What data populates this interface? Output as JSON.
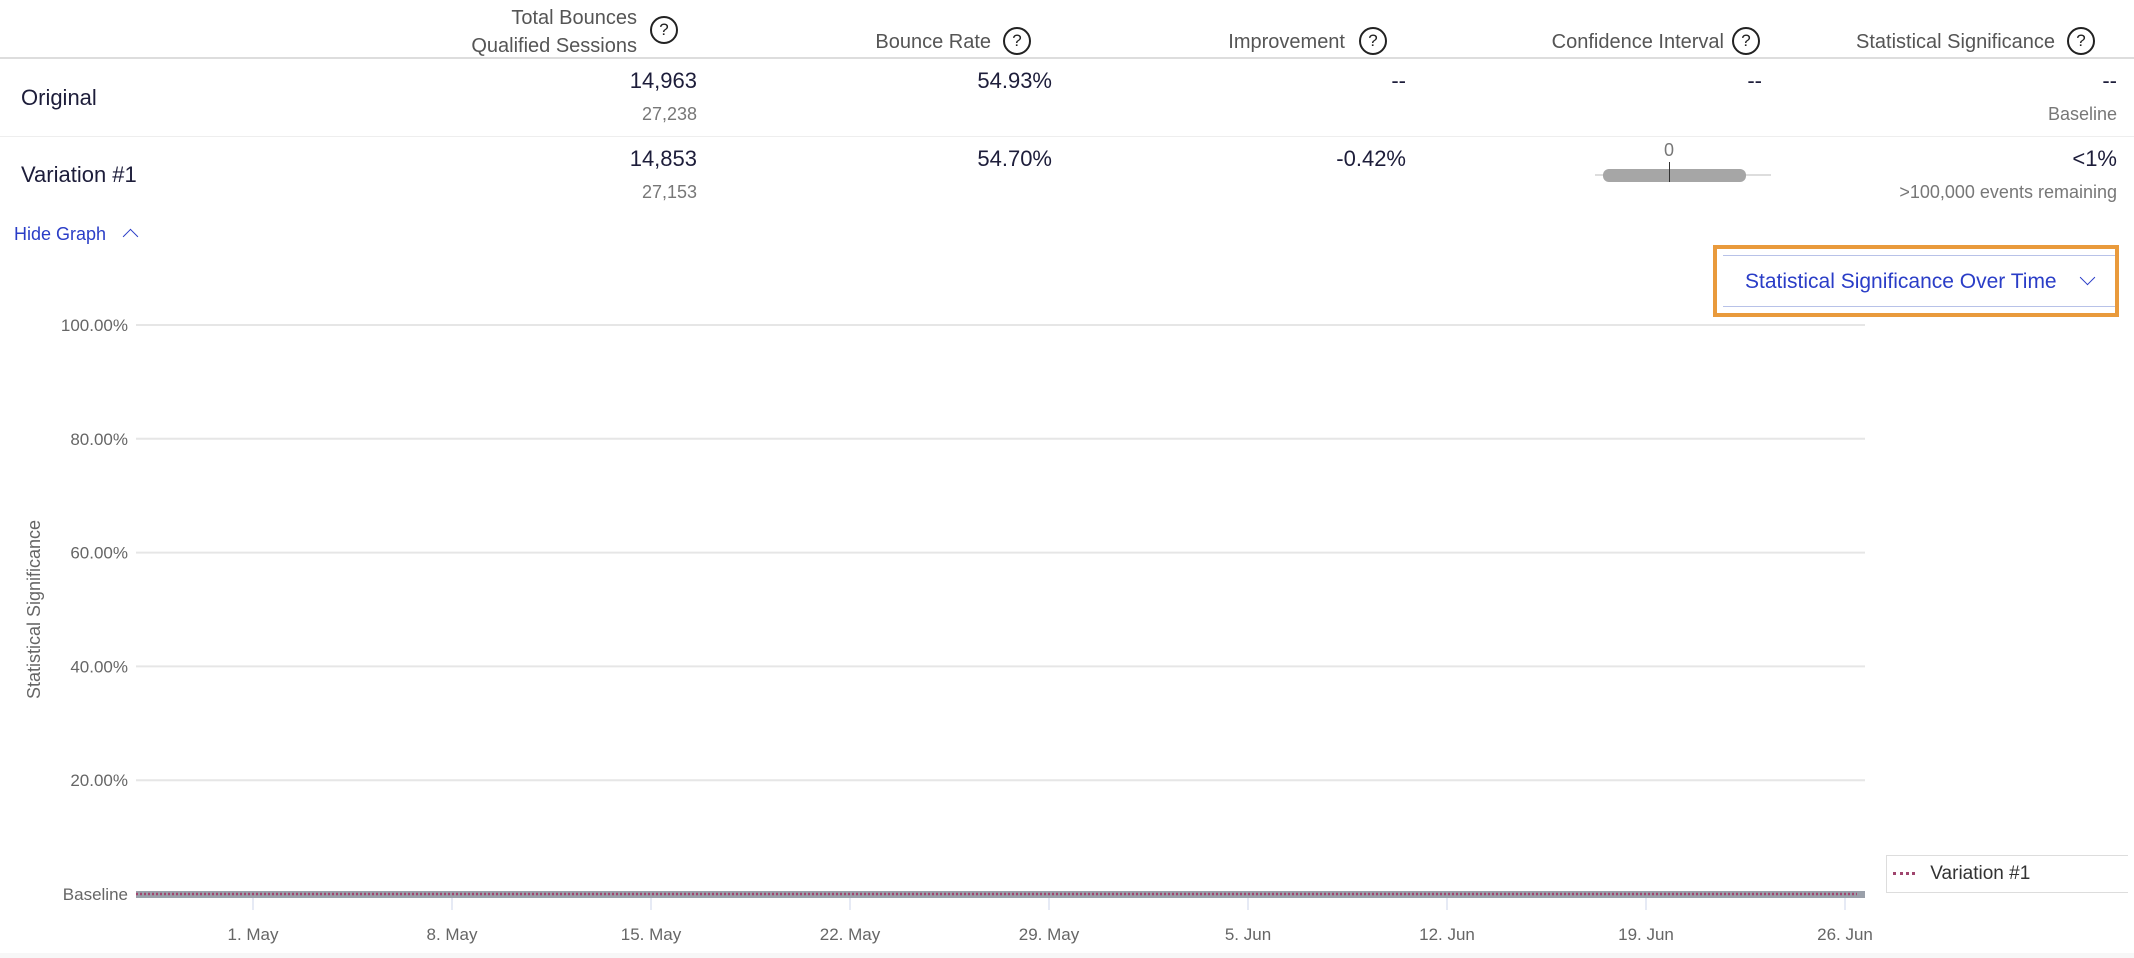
{
  "table": {
    "headers": [
      {
        "line1": "Total Bounces",
        "line2": "Qualified Sessions"
      },
      {
        "label": "Bounce Rate"
      },
      {
        "label": "Improvement"
      },
      {
        "label": "Confidence Interval"
      },
      {
        "label": "Statistical Significance"
      }
    ],
    "help_glyph": "?",
    "rows": [
      {
        "name": "Original",
        "bounces": "14,963",
        "sessions": "27,238",
        "bounce_rate": "54.93%",
        "improvement": "--",
        "ci": "--",
        "significance": "--",
        "significance_sub": "Baseline"
      },
      {
        "name": "Variation #1",
        "bounces": "14,853",
        "sessions": "27,153",
        "bounce_rate": "54.70%",
        "improvement": "-0.42%",
        "ci_zero_label": "0",
        "significance": "<1%",
        "significance_sub": ">100,000 events remaining"
      }
    ]
  },
  "toggle": {
    "label": "Hide Graph",
    "icon": "chevron-up-icon"
  },
  "dropdown": {
    "selected": "Statistical Significance Over Time",
    "icon": "chevron-down-icon"
  },
  "chart_data": {
    "type": "line",
    "title": "Statistical Significance Over Time",
    "ylabel": "Statistical Significance",
    "xlabel": "",
    "ylim": [
      0,
      100
    ],
    "y_ticks": [
      "Baseline",
      "20.00%",
      "40.00%",
      "60.00%",
      "80.00%",
      "100.00%"
    ],
    "y_tick_values": [
      0,
      20,
      40,
      60,
      80,
      100
    ],
    "x_ticks": [
      "1. May",
      "8. May",
      "15. May",
      "22. May",
      "29. May",
      "5. Jun",
      "12. Jun",
      "19. Jun",
      "26. Jun"
    ],
    "grid": true,
    "legend": "bottom-right",
    "series": [
      {
        "name": "Variation #1",
        "color": "#a0456e",
        "style": "dotted",
        "values": [
          0,
          0,
          0,
          0,
          0,
          0,
          0,
          0,
          0
        ]
      }
    ]
  }
}
